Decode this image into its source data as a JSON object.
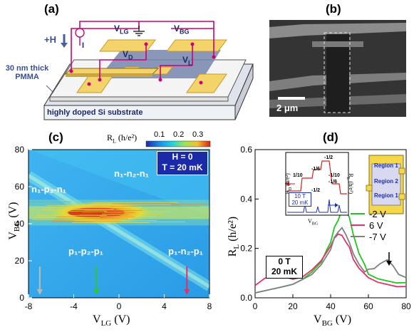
{
  "panel_labels": {
    "a": "(a)",
    "b": "(b)",
    "c": "(c)",
    "d": "(d)"
  },
  "panel_a": {
    "v_lg": "V",
    "v_lg_sub": "LG",
    "v_bg": "V",
    "v_bg_sub": "BG",
    "v_d": "V",
    "v_d_sub": "D",
    "v_l": "V",
    "v_l_sub": "L",
    "current": "I",
    "field": "+H",
    "pmma_line1": "30 nm thick",
    "pmma_line2": "PMMA",
    "substrate": "highly doped Si substrate",
    "colors": {
      "wire": "#cc0077",
      "substrate": "#ebeef4",
      "electrode": "#f3d36a",
      "graphene": "#6e7ea8"
    }
  },
  "panel_b": {
    "scale_bar": "2 μm"
  },
  "panel_c": {
    "colorbar_title": "R",
    "colorbar_title_sub": "L",
    "colorbar_unit": " (h/e²)",
    "colorbar_ticks": [
      "0.1",
      "0.2",
      "0.3"
    ],
    "info_line1": "H = 0",
    "info_line2": "T = 20 mK",
    "region_top": "n₁-n₂-n₁",
    "region_left": "n₁-p₂-n₁",
    "region_bottom_left": "p₁-p₂-p₁",
    "region_bottom_right": "p₁-n₂-p₁",
    "ylabel_main": "V",
    "ylabel_sub": "BG",
    "ylabel_unit": " (V)",
    "xlabel_main": "V",
    "xlabel_sub": "LG",
    "xlabel_unit": " (V)",
    "arrow_colors": [
      "#b9b9b9",
      "#2ec82e",
      "#e0306a"
    ]
  },
  "panel_d": {
    "ylabel_main": "R",
    "ylabel_sub": "L",
    "ylabel_unit": " (h/e²)",
    "xlabel_main": "V",
    "xlabel_sub": "BG",
    "xlabel_unit": " (V)",
    "box_line1": "0 T",
    "box_line2": "20 mK",
    "inset_left_label": "R",
    "inset_left_label_sub": "D",
    "inset_left_label_unit": " (h/e²)",
    "inset_right_label": "R",
    "inset_right_label_sub": "L",
    "inset_right_label_unit": " (h/e²)",
    "inset_xlabel": "V",
    "inset_xlabel_sub": "BG",
    "inset_field_1": "10 T",
    "inset_field_2": "20 mK",
    "inset_fractions": [
      "-1/2",
      "-1/6",
      "1/10",
      "-1/10",
      "-1/6",
      "-1/2"
    ],
    "legend_region_1": "Region 1",
    "legend_region_2": "Region 2",
    "legend_region_3": "Region 1"
  },
  "chart_data": [
    {
      "type": "heatmap",
      "panel": "c",
      "xlabel": "V_LG (V)",
      "ylabel": "V_BG (V)",
      "xlim": [
        -8,
        8
      ],
      "ylim": [
        0,
        80
      ],
      "x_ticks": [
        "-8",
        "-4",
        "0",
        "4",
        "8"
      ],
      "y_ticks": [
        "0",
        "20",
        "40",
        "60",
        "80"
      ],
      "colorbar_range": [
        0.1,
        0.3
      ],
      "features": {
        "horizontal_ridge_vbg": 46,
        "diagonal_ridge": [
          [
            -8,
            66
          ],
          [
            8,
            6
          ]
        ]
      },
      "arrow_positions_vlg": [
        -7,
        -2,
        6
      ]
    },
    {
      "type": "line",
      "panel": "d",
      "xlabel": "V_BG (V)",
      "ylabel": "R_L (h/e²)",
      "xlim": [
        0,
        80
      ],
      "ylim": [
        0,
        0.6
      ],
      "x_ticks": [
        "0",
        "20",
        "40",
        "60",
        "80"
      ],
      "y_ticks": [
        "0.0",
        "0.2",
        "0.4",
        "0.6"
      ],
      "series": [
        {
          "name": "-2 V",
          "color": "#22c422",
          "x": [
            0,
            5,
            10,
            15,
            20,
            25,
            30,
            35,
            38,
            40,
            42,
            44,
            46,
            47,
            48,
            50,
            52,
            55,
            58,
            60,
            65,
            70,
            75,
            80
          ],
          "y": [
            0.02,
            0.03,
            0.04,
            0.05,
            0.06,
            0.08,
            0.11,
            0.15,
            0.19,
            0.23,
            0.28,
            0.32,
            0.35,
            0.37,
            0.36,
            0.32,
            0.26,
            0.18,
            0.13,
            0.1,
            0.08,
            0.07,
            0.06,
            0.06
          ]
        },
        {
          "name": "6 V",
          "color": "#dd3366",
          "x": [
            0,
            5,
            8,
            10,
            12,
            15,
            20,
            25,
            30,
            35,
            40,
            42,
            44,
            46,
            48,
            50,
            52,
            55,
            60,
            65,
            70,
            75,
            80
          ],
          "y": [
            0.05,
            0.08,
            0.09,
            0.1,
            0.09,
            0.08,
            0.07,
            0.08,
            0.11,
            0.15,
            0.21,
            0.24,
            0.26,
            0.25,
            0.23,
            0.2,
            0.16,
            0.12,
            0.08,
            0.06,
            0.05,
            0.04,
            0.04
          ]
        },
        {
          "name": "-7 V",
          "color": "#808080",
          "x": [
            0,
            5,
            10,
            15,
            20,
            25,
            30,
            35,
            40,
            42,
            44,
            46,
            48,
            50,
            52,
            55,
            58,
            60,
            63,
            66,
            70,
            73,
            76,
            80
          ],
          "y": [
            0.02,
            0.03,
            0.04,
            0.05,
            0.06,
            0.08,
            0.1,
            0.14,
            0.2,
            0.24,
            0.27,
            0.28,
            0.26,
            0.22,
            0.18,
            0.13,
            0.11,
            0.11,
            0.12,
            0.14,
            0.15,
            0.13,
            0.1,
            0.08
          ]
        }
      ]
    }
  ]
}
